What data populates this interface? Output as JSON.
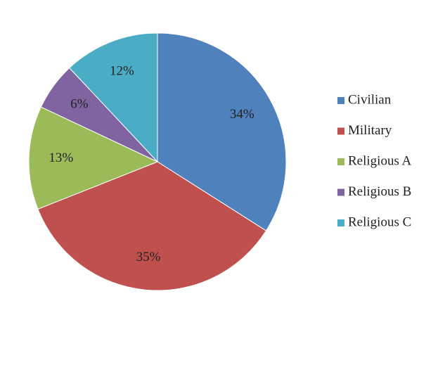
{
  "chart_data": {
    "type": "pie",
    "title": "",
    "legend_position": "right",
    "start_angle_deg": 0,
    "direction": "clockwise",
    "slices": [
      {
        "name": "Civilian",
        "value": 34,
        "label": "34%",
        "color": "#4F81BD"
      },
      {
        "name": "Military",
        "value": 35,
        "label": "35%",
        "color": "#C0504D"
      },
      {
        "name": "Religious A",
        "value": 13,
        "label": "13%",
        "color": "#9BBB59"
      },
      {
        "name": "Religious B",
        "value": 6,
        "label": "6%",
        "color": "#8064A2"
      },
      {
        "name": "Religious C",
        "value": 12,
        "label": "12%",
        "color": "#4BACC6"
      }
    ]
  }
}
